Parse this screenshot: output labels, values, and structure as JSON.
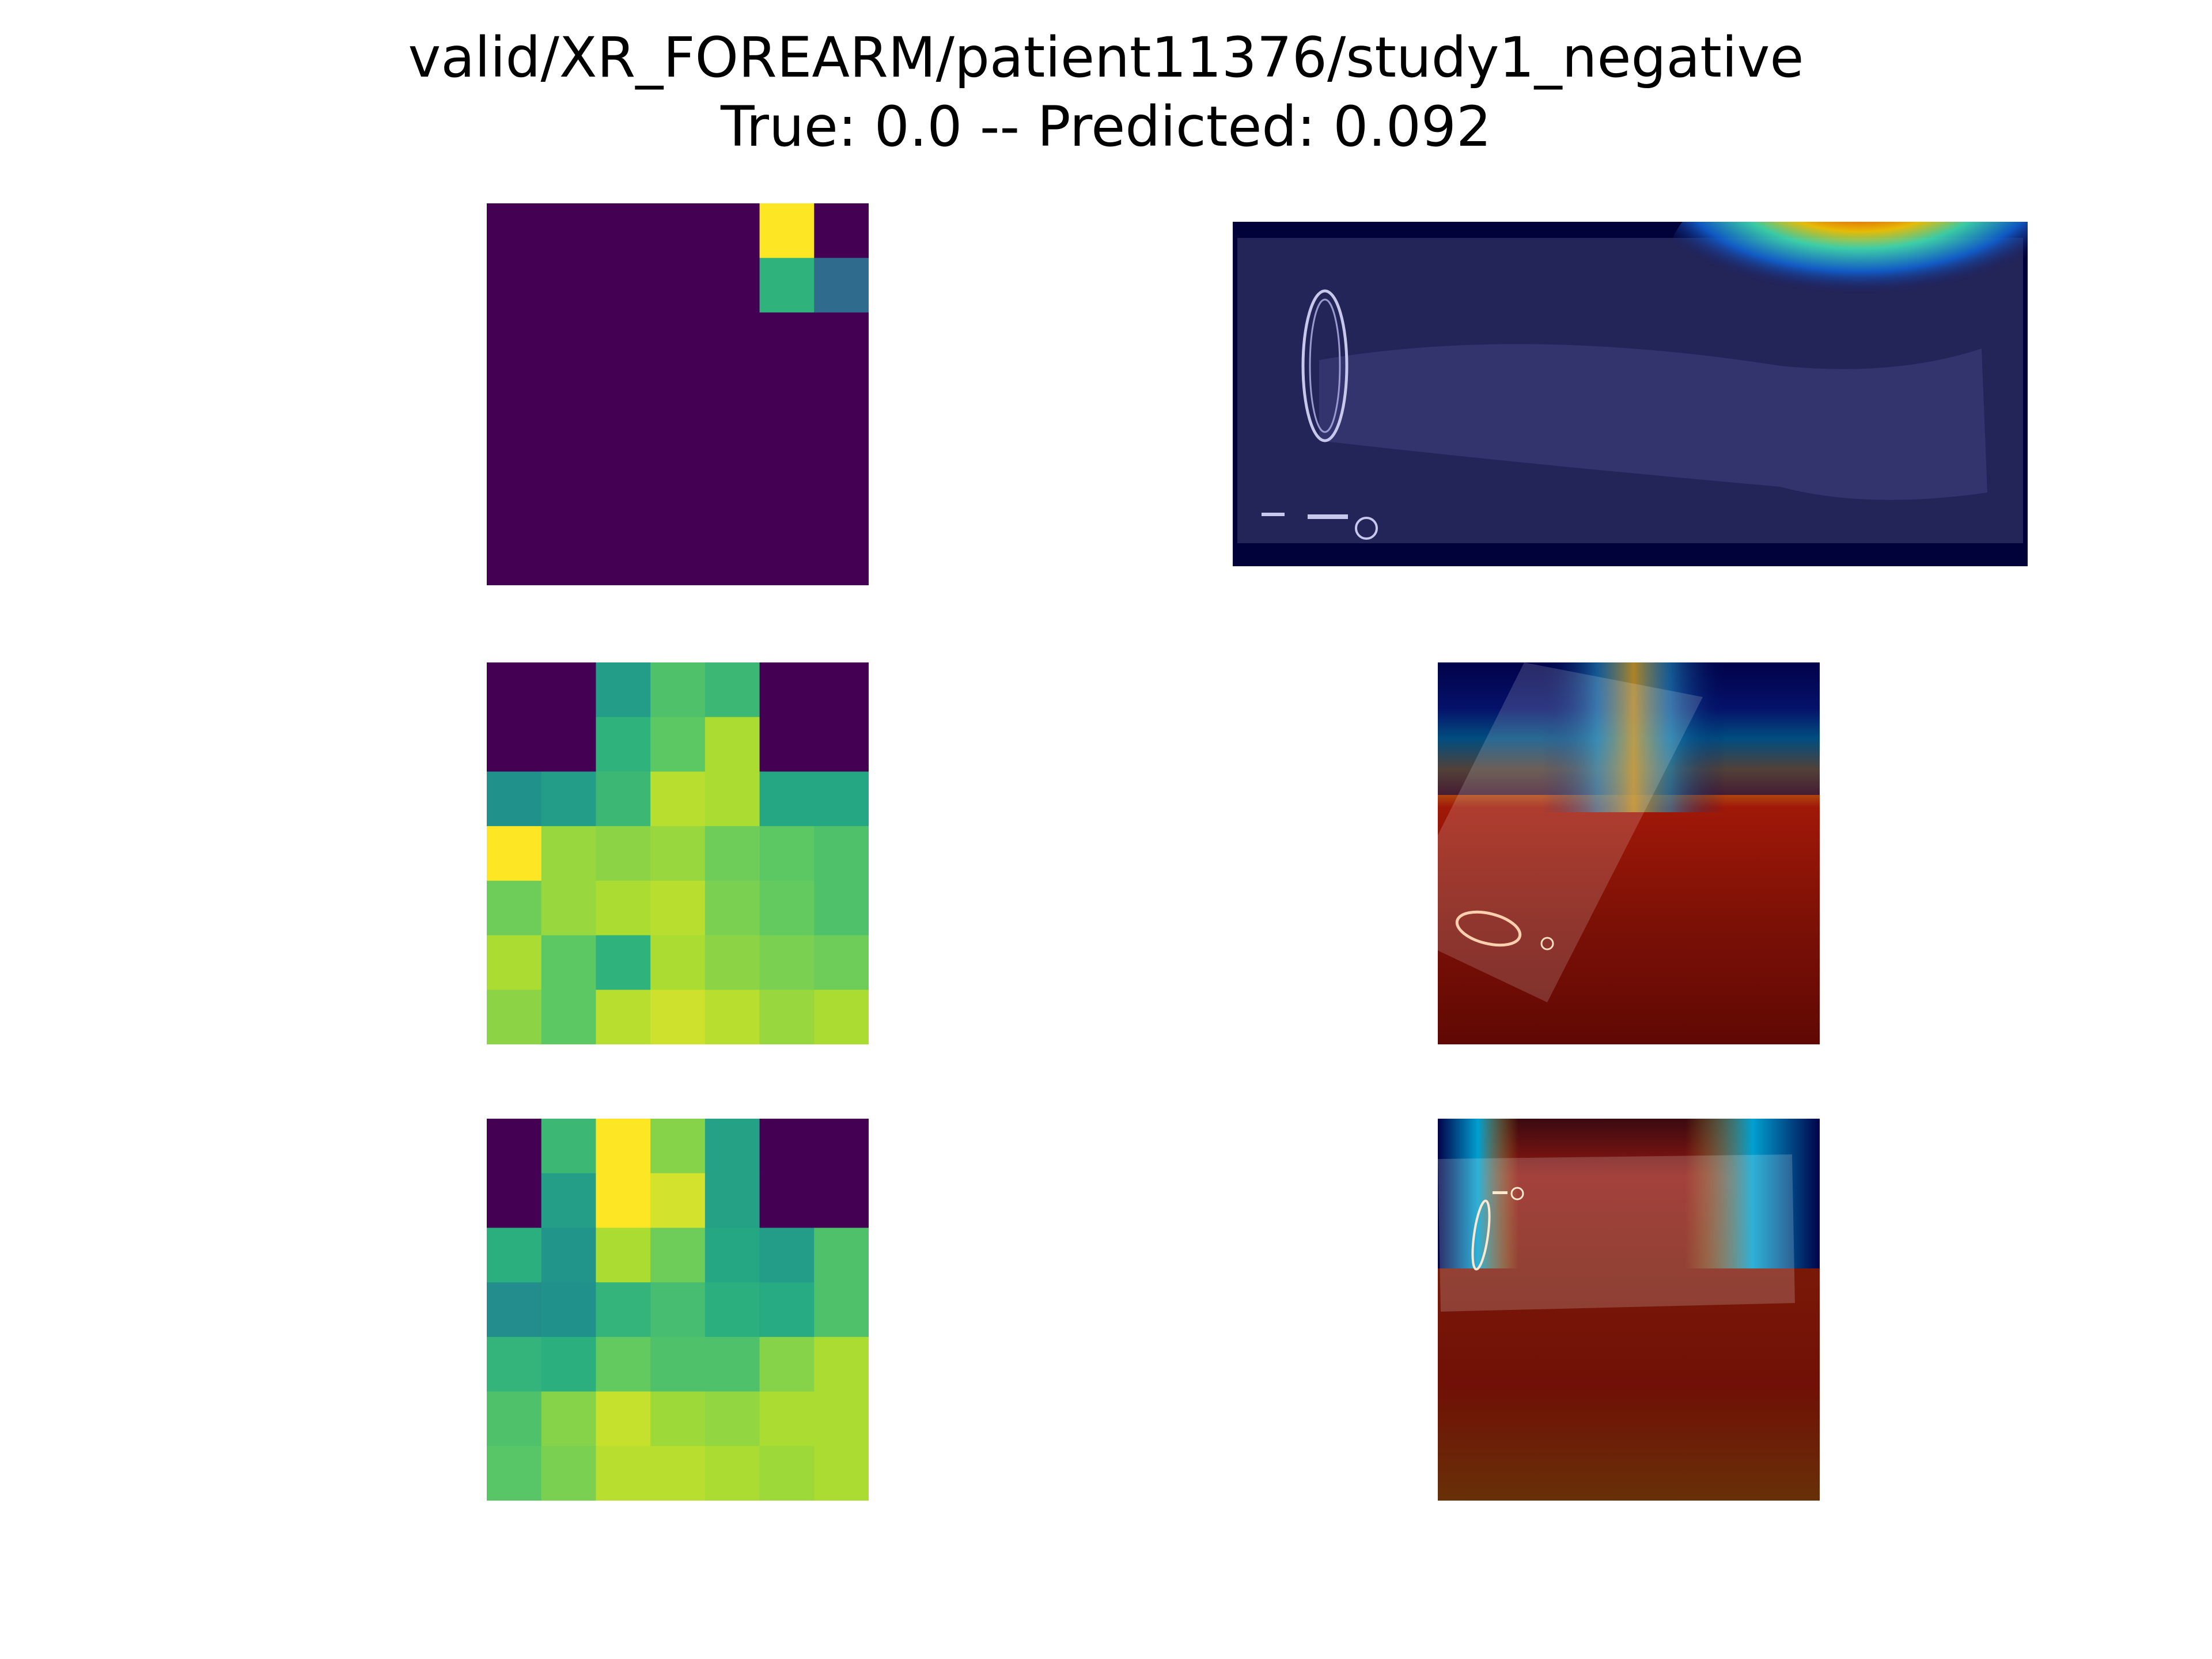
{
  "figure": {
    "title_line1": "valid/XR_FOREARM/patient11376/study1_negative",
    "title_line2": "True: 0.0 -- Predicted: 0.092"
  },
  "colors": {
    "background": "#ffffff",
    "heat_colormap": "viridis",
    "overlay_colormap": "jet"
  },
  "chart_data": [
    {
      "type": "heatmap",
      "panel": "row1-left",
      "rows": 7,
      "cols": 7,
      "values": [
        [
          0,
          0,
          0,
          0,
          0,
          1.0,
          0
        ],
        [
          0,
          0,
          0,
          0,
          0,
          0.65,
          0.35
        ],
        [
          0,
          0,
          0,
          0,
          0,
          0,
          0
        ],
        [
          0,
          0,
          0,
          0,
          0,
          0,
          0
        ],
        [
          0,
          0,
          0,
          0,
          0,
          0,
          0
        ],
        [
          0,
          0,
          0,
          0,
          0,
          0,
          0
        ],
        [
          0,
          0,
          0,
          0,
          0,
          0,
          0
        ]
      ]
    },
    {
      "type": "heatmap",
      "panel": "row2-left",
      "rows": 7,
      "cols": 7,
      "values": [
        [
          0,
          0,
          0.55,
          0.72,
          0.68,
          0,
          0
        ],
        [
          0,
          0,
          0.65,
          0.75,
          0.88,
          0,
          0
        ],
        [
          0.5,
          0.55,
          0.68,
          0.9,
          0.88,
          0.6,
          0.6
        ],
        [
          1.0,
          0.85,
          0.83,
          0.85,
          0.78,
          0.75,
          0.72
        ],
        [
          0.78,
          0.85,
          0.88,
          0.9,
          0.8,
          0.76,
          0.72
        ],
        [
          0.88,
          0.75,
          0.65,
          0.88,
          0.83,
          0.8,
          0.78
        ],
        [
          0.83,
          0.75,
          0.9,
          0.93,
          0.9,
          0.85,
          0.88
        ]
      ]
    },
    {
      "type": "heatmap",
      "panel": "row3-left",
      "rows": 7,
      "cols": 7,
      "values": [
        [
          0,
          0.68,
          1.0,
          0.82,
          0.58,
          0,
          0
        ],
        [
          0,
          0.56,
          1.0,
          0.94,
          0.58,
          0,
          0
        ],
        [
          0.64,
          0.52,
          0.88,
          0.78,
          0.6,
          0.55,
          0.72
        ],
        [
          0.48,
          0.5,
          0.66,
          0.7,
          0.64,
          0.62,
          0.72
        ],
        [
          0.66,
          0.64,
          0.76,
          0.72,
          0.72,
          0.82,
          0.88
        ],
        [
          0.72,
          0.82,
          0.92,
          0.86,
          0.84,
          0.88,
          0.88
        ],
        [
          0.74,
          0.8,
          0.9,
          0.9,
          0.88,
          0.86,
          0.88
        ]
      ]
    }
  ]
}
